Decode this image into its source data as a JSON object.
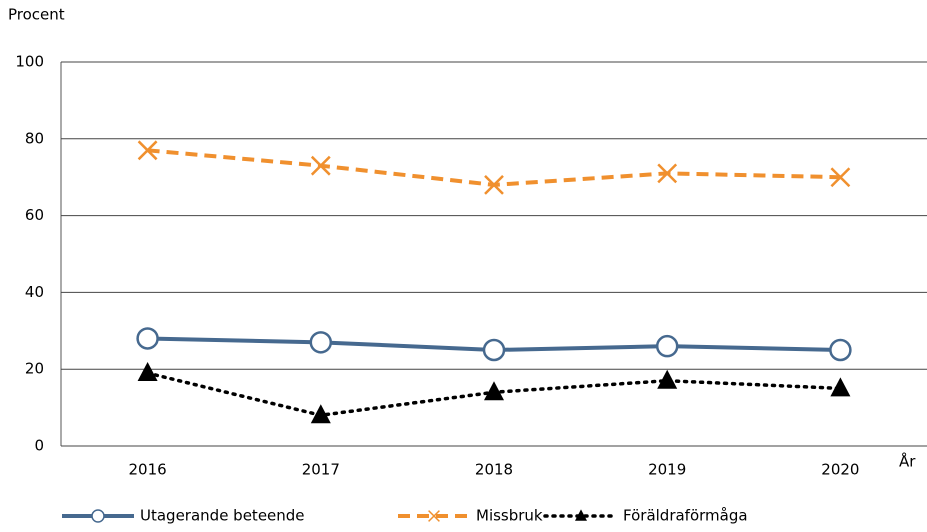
{
  "chart_data": {
    "type": "line",
    "y_label": "Procent",
    "x_label": "År",
    "categories": [
      "2016",
      "2017",
      "2018",
      "2019",
      "2020"
    ],
    "series": [
      {
        "name": "Utagerande beteende",
        "color": "#46698f",
        "marker": "circle",
        "line_style": "solid",
        "values": [
          28,
          27,
          25,
          26,
          25
        ]
      },
      {
        "name": "Missbruk",
        "color": "#f0902e",
        "marker": "x",
        "line_style": "dashed",
        "values": [
          77,
          73,
          68,
          71,
          70
        ]
      },
      {
        "name": "Föräldraförmåga",
        "color": "#000000",
        "marker": "triangle",
        "line_style": "dotted",
        "values": [
          19,
          8,
          14,
          17,
          15
        ]
      }
    ],
    "ylim": [
      0,
      100
    ],
    "yticks": [
      0,
      20,
      40,
      60,
      80,
      100
    ],
    "grid": true
  }
}
